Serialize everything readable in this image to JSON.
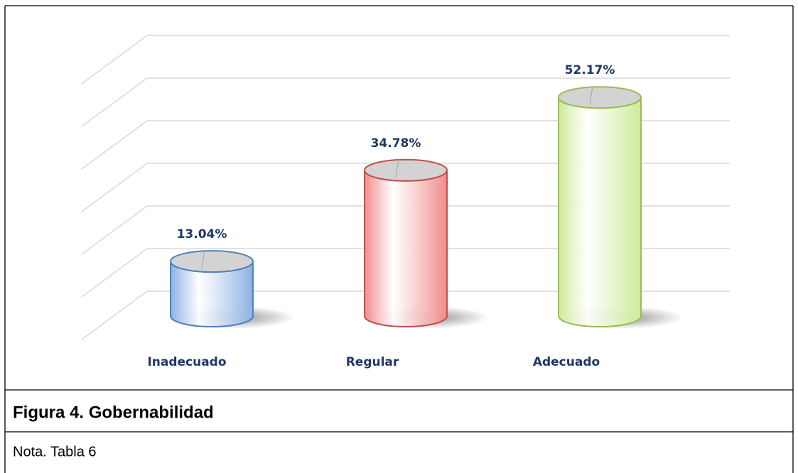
{
  "chart_data": {
    "type": "bar",
    "categories": [
      "Inadecuado",
      "Regular",
      "Adecuado"
    ],
    "values": [
      13.04,
      34.78,
      52.17
    ],
    "value_labels": [
      "13.04%",
      "34.78%",
      "52.17%"
    ],
    "colors": [
      "#8fb0e3",
      "#f08c8c",
      "#cdeb98"
    ],
    "edge_colors": [
      "#4f81bd",
      "#c0504d",
      "#9bbb59"
    ],
    "ylim": [
      0,
      60
    ],
    "yticks": [
      0,
      10,
      20,
      30,
      40,
      50,
      60
    ],
    "grid": true
  },
  "caption": {
    "title": "Figura 4. Gobernabilidad",
    "note": "Nota. Tabla 6"
  }
}
